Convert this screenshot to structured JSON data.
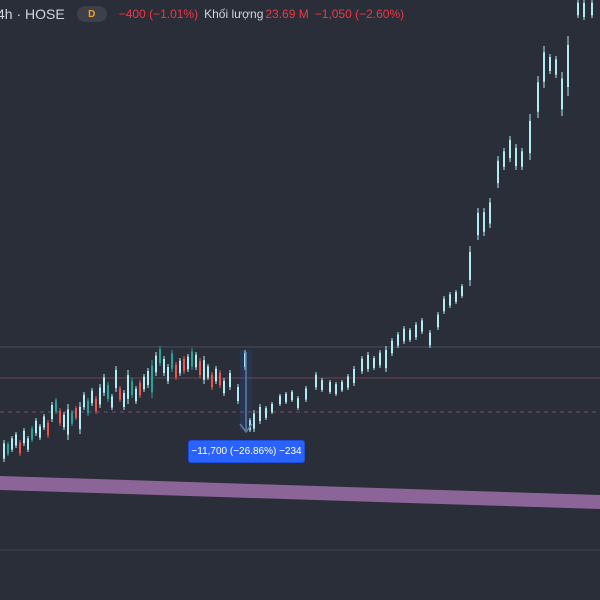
{
  "header": {
    "symbol": "4h · HOSE",
    "interval_badge": "D",
    "price_change": "−400 (−1.01%)",
    "volume_label": "Khối lượng",
    "volume_value": "23.69 M",
    "volume_change": "−1,050 (−2.60%)"
  },
  "measure": {
    "label": "−11,700 (−26.86%) −234"
  },
  "colors": {
    "background": "#2a2e39",
    "candle": "#b2ebf2",
    "candle_up": "#26a69a",
    "candle_down": "#ef5350",
    "band": "#9c6ea8",
    "measure_bg": "#2962ff",
    "text_red": "#f23645",
    "badge_text": "#f7a21b"
  }
}
